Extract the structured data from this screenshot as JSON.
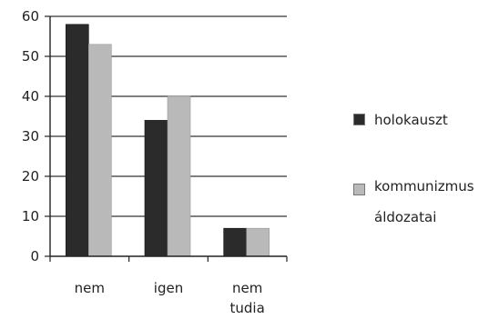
{
  "chart_data": {
    "type": "bar",
    "categories": [
      [
        "nem"
      ],
      [
        "igen"
      ],
      [
        "nem",
        "tudia"
      ]
    ],
    "series": [
      {
        "name": "holokauszt",
        "values": [
          58,
          34,
          7
        ],
        "color": "#2b2b2b"
      },
      {
        "name": "kommunizmus\náldozatai",
        "values": [
          53,
          40,
          7
        ],
        "color": "#b9b9b9"
      }
    ],
    "yticks": [
      0,
      10,
      20,
      30,
      40,
      50,
      60
    ],
    "ylim": [
      0,
      60
    ],
    "grid": true,
    "legend_position": "right"
  }
}
